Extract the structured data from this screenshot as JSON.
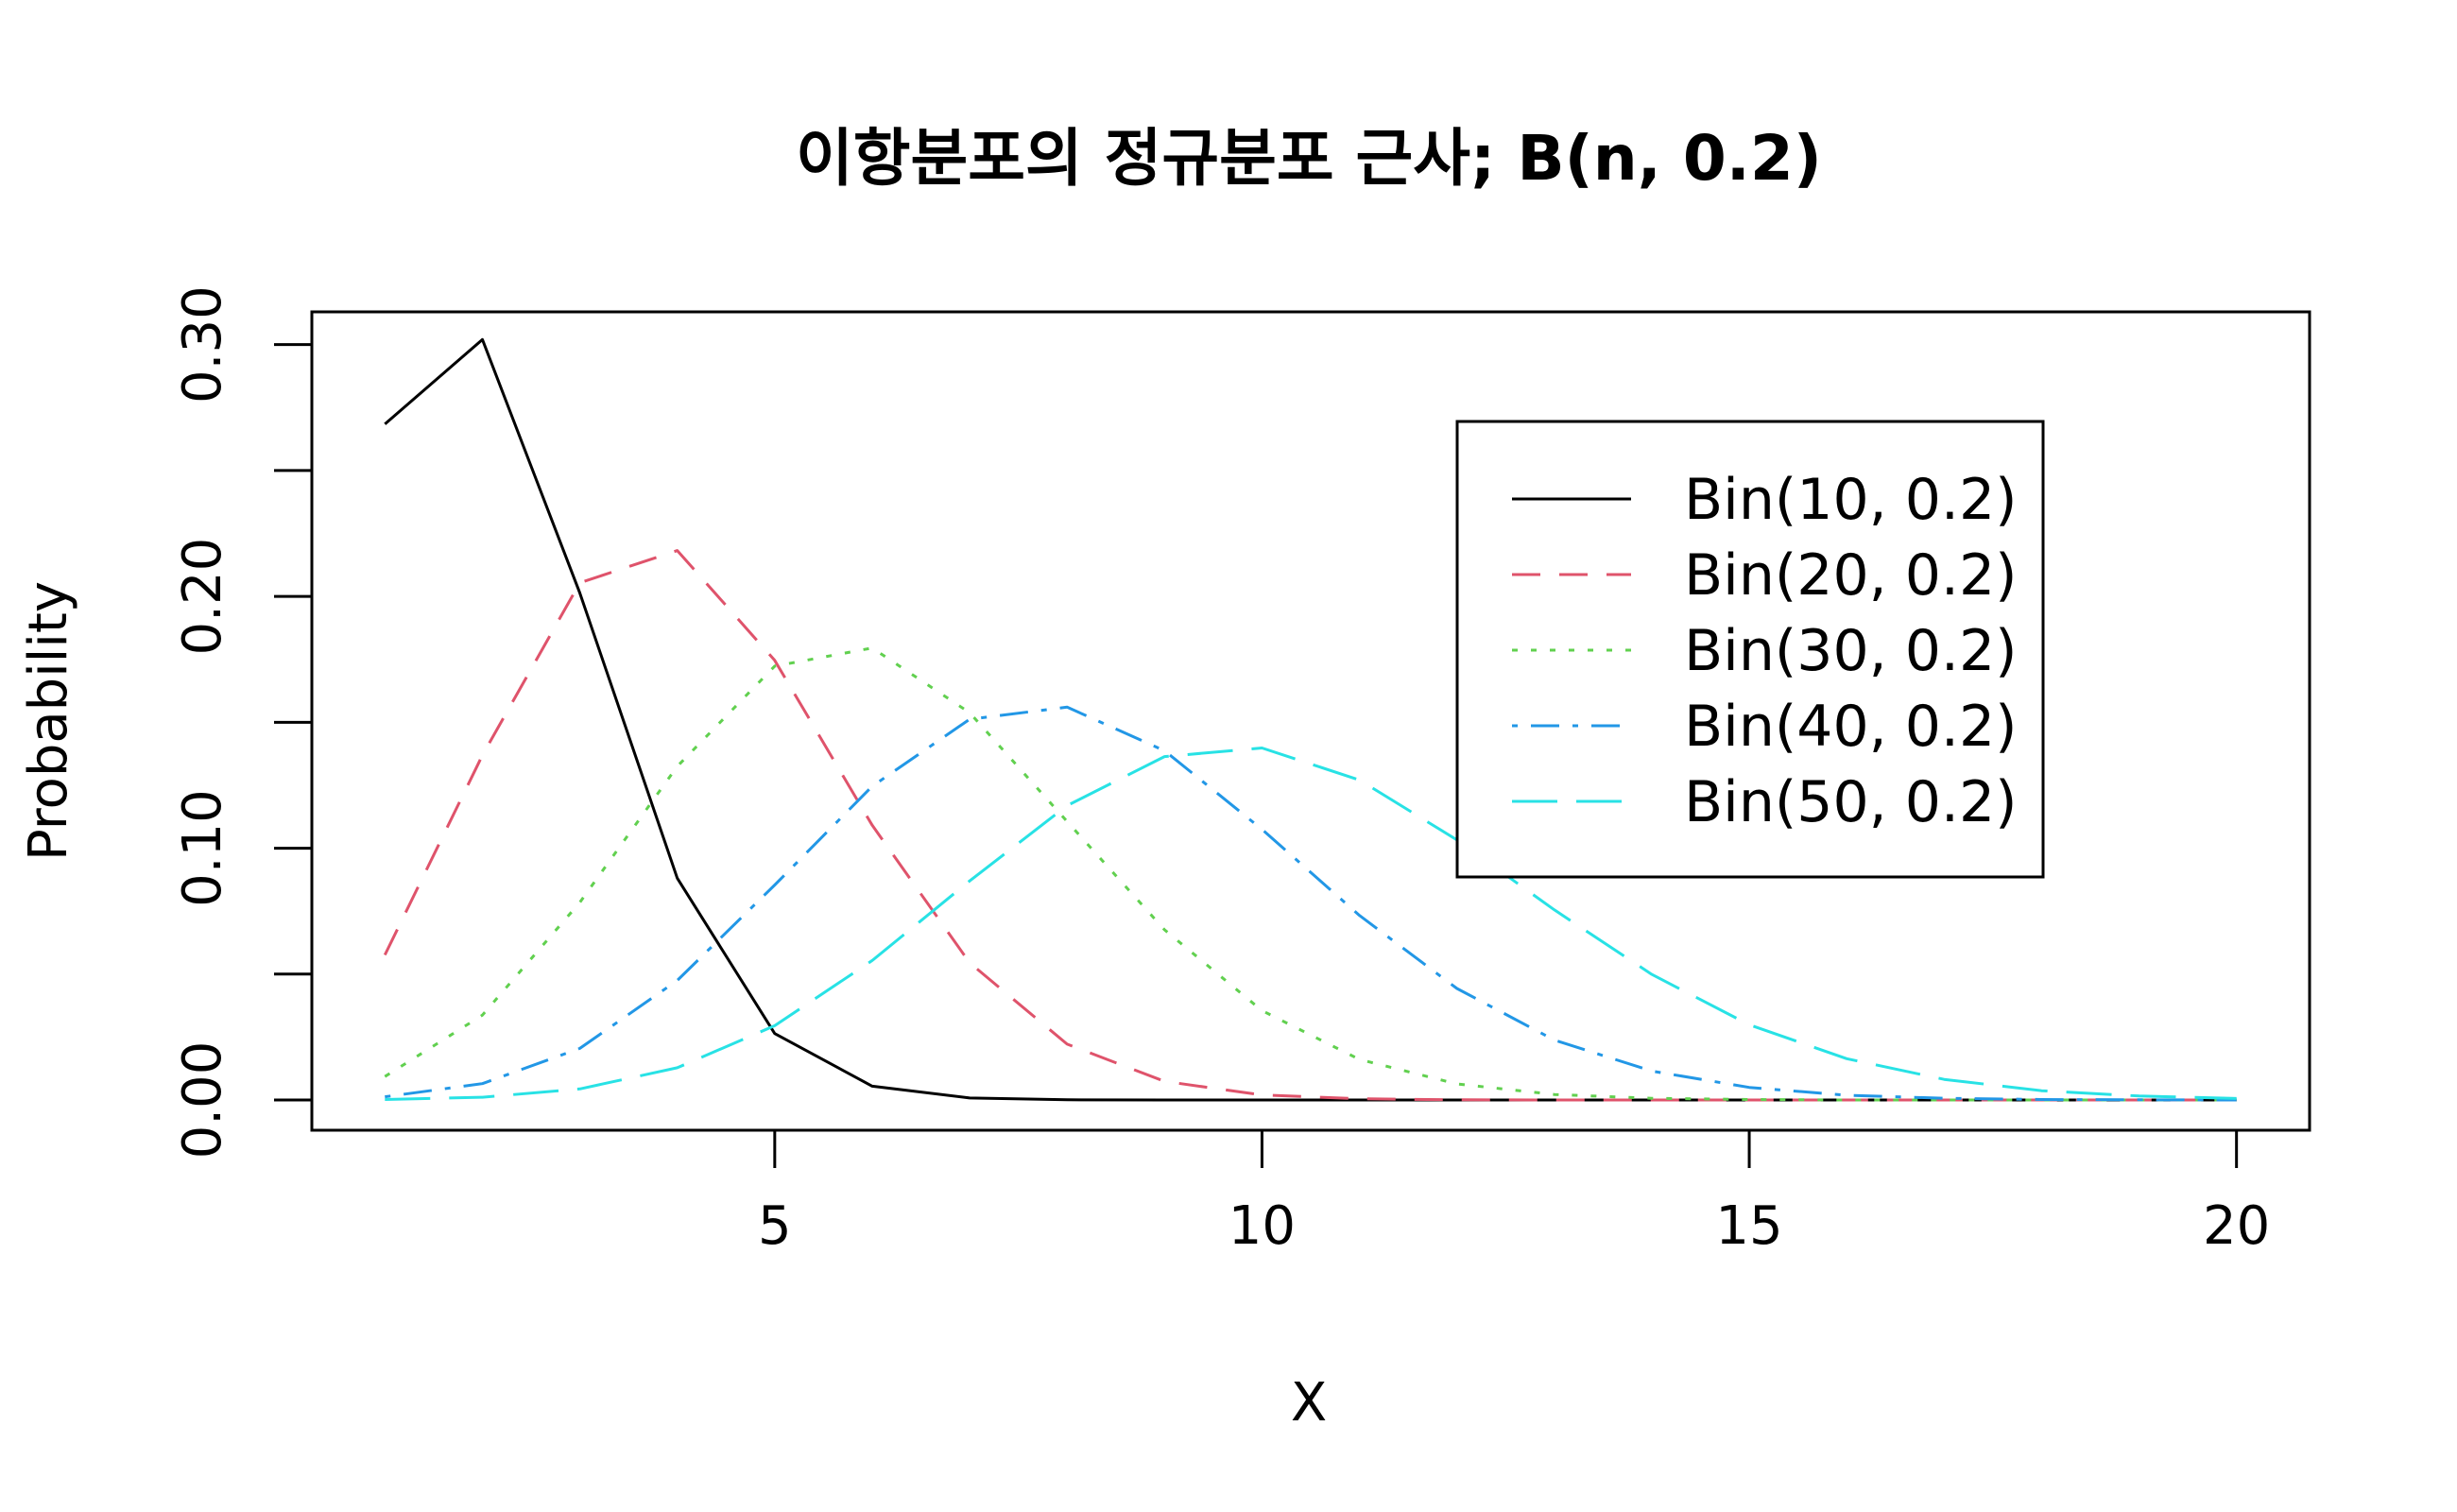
{
  "chart_data": {
    "type": "line",
    "title": "이항분포의 정규분포 근사; B(n, 0.2)",
    "xlabel": "X",
    "ylabel": "Probability",
    "xlim": [
      0.25,
      20.75
    ],
    "ylim": [
      -0.012,
      0.313
    ],
    "x_ticks": [
      5,
      10,
      15,
      20
    ],
    "y_ticks": [
      0.0,
      0.05,
      0.1,
      0.15,
      0.2,
      0.25,
      0.3
    ],
    "y_tick_labels": [
      {
        "value": 0.0,
        "label": "0.00"
      },
      {
        "value": 0.1,
        "label": "0.10"
      },
      {
        "value": 0.2,
        "label": "0.20"
      },
      {
        "value": 0.3,
        "label": "0.30"
      }
    ],
    "legend_position": "top-right",
    "x": [
      1,
      2,
      3,
      4,
      5,
      6,
      7,
      8,
      9,
      10,
      11,
      12,
      13,
      14,
      15,
      16,
      17,
      18,
      19,
      20
    ],
    "series": [
      {
        "name": "Bin(10, 0.2)",
        "color": "#000000",
        "dash": "solid",
        "values": [
          0.2684,
          0.302,
          0.2013,
          0.0881,
          0.0264,
          0.0055,
          0.0008,
          0.0001,
          0.0,
          0.0,
          0,
          0,
          0,
          0,
          0,
          0,
          0,
          0,
          0,
          0
        ]
      },
      {
        "name": "Bin(20, 0.2)",
        "color": "#DF536B",
        "dash": "dashed",
        "values": [
          0.0576,
          0.1369,
          0.2054,
          0.2182,
          0.1746,
          0.1091,
          0.0545,
          0.0222,
          0.0074,
          0.002,
          0.0005,
          0.0001,
          0.0,
          0.0,
          0.0,
          0.0,
          0.0,
          0.0,
          0.0,
          0.0
        ]
      },
      {
        "name": "Bin(30, 0.2)",
        "color": "#61D04F",
        "dash": "dotted",
        "values": [
          0.0093,
          0.0337,
          0.0785,
          0.1325,
          0.1723,
          0.1795,
          0.1538,
          0.1106,
          0.0676,
          0.0355,
          0.0161,
          0.0064,
          0.0022,
          0.0007,
          0.0002,
          0.0,
          0.0,
          0.0,
          0.0,
          0.0
        ]
      },
      {
        "name": "Bin(40, 0.2)",
        "color": "#2297E6",
        "dash": "dotdash",
        "values": [
          0.0013,
          0.0065,
          0.0205,
          0.0475,
          0.0854,
          0.1246,
          0.1512,
          0.156,
          0.1387,
          0.1075,
          0.0733,
          0.0443,
          0.0238,
          0.0115,
          0.005,
          0.0019,
          0.0007,
          0.0002,
          0.0001,
          0.0
        ]
      },
      {
        "name": "Bin(50, 0.2)",
        "color": "#28E2E5",
        "dash": "longdash",
        "values": [
          0.0002,
          0.0011,
          0.0044,
          0.0128,
          0.0295,
          0.0554,
          0.087,
          0.1169,
          0.1364,
          0.1398,
          0.1271,
          0.1033,
          0.0755,
          0.0499,
          0.0299,
          0.0164,
          0.0082,
          0.0037,
          0.0016,
          0.0006
        ]
      }
    ]
  }
}
